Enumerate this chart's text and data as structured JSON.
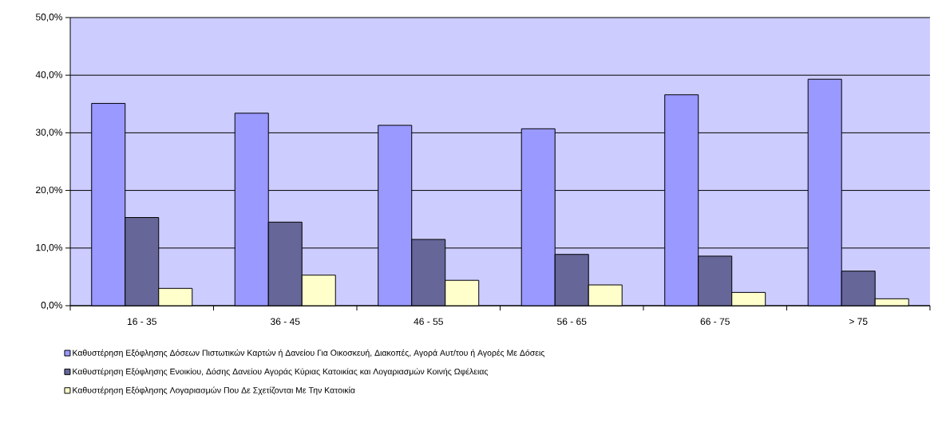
{
  "chart_data": {
    "type": "bar",
    "categories": [
      "16 - 35",
      "36 - 45",
      "46 - 55",
      "56 - 65",
      "66 - 75",
      "> 75"
    ],
    "series": [
      {
        "name": "Καθυστέρηση Εξόφλησης Δόσεων Πιστωτικών Καρτών ή Δανείου Για Οικοσκευή, Διακοπές, Αγορά Αυτ/του ή Αγορές Με Δόσεις",
        "color": "#9999ff",
        "values": [
          35.1,
          33.4,
          31.3,
          30.7,
          36.6,
          39.3
        ]
      },
      {
        "name": "Καθυστέρηση Εξόφλησης Ενοικίου, Δόσης Δανείου Αγοράς Κύριας Κατοικίας και Λογαριασμών Κοινής Ωφέλειας",
        "color": "#666699",
        "values": [
          15.3,
          14.5,
          11.5,
          8.9,
          8.6,
          6.0
        ]
      },
      {
        "name": "Καθυστέρηση Εξόφλησης Λογαριασμών Που Δε Σχετίζονται Με Την Κατοικία",
        "color": "#ffffcc",
        "values": [
          3.0,
          5.3,
          4.4,
          3.6,
          2.3,
          1.2
        ]
      }
    ],
    "ylim": [
      0,
      50
    ],
    "yticks": [
      {
        "value": 0,
        "label": "0,0%"
      },
      {
        "value": 10,
        "label": "10,0%"
      },
      {
        "value": 20,
        "label": "20,0%"
      },
      {
        "value": 30,
        "label": "30,0%"
      },
      {
        "value": 40,
        "label": "40,0%"
      },
      {
        "value": 50,
        "label": "50,0%"
      }
    ],
    "grid": "y",
    "legend": "bottom"
  }
}
